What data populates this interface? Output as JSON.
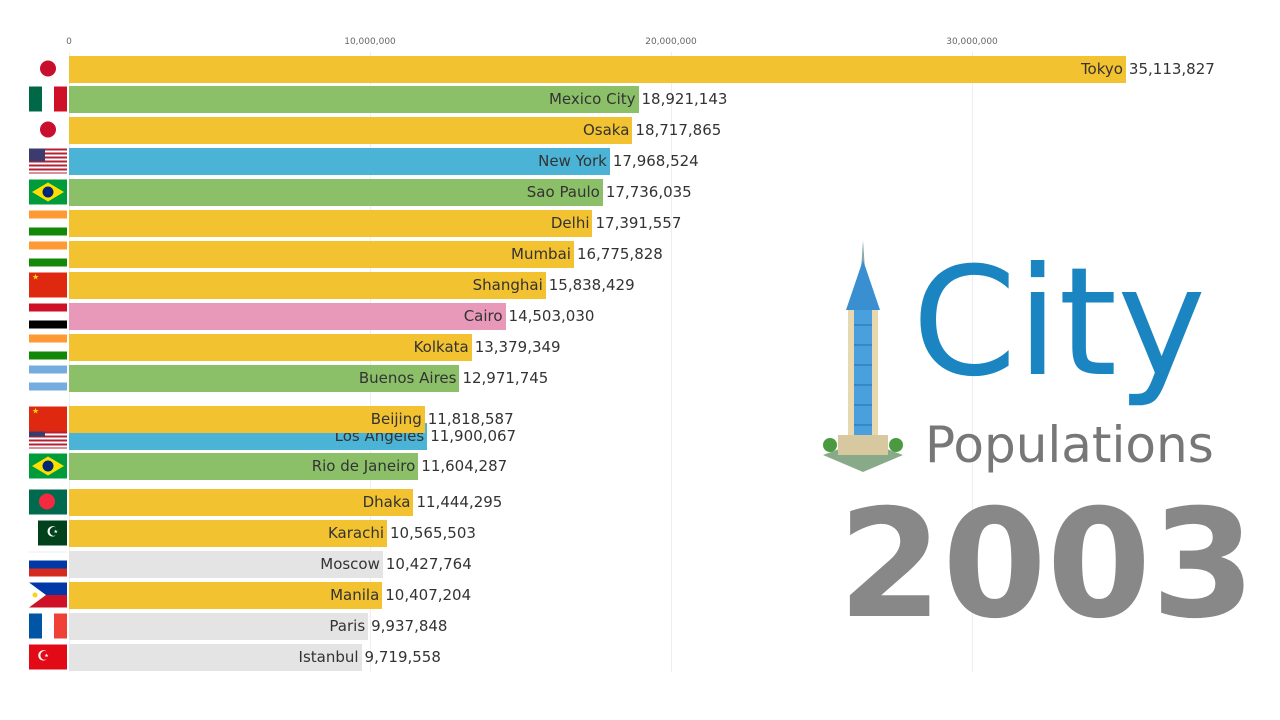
{
  "chart_data": {
    "type": "bar",
    "orientation": "horizontal",
    "xlim": [
      0,
      35113827
    ],
    "x_ticks": [
      "0",
      "10,000,000",
      "20,000,000",
      "30,000,000"
    ],
    "tick_values": [
      0,
      10000000,
      20000000,
      30000000
    ],
    "grid": true,
    "rows": [
      {
        "city": "Tokyo",
        "value": 35113827,
        "value_label": "35,113,827",
        "color": "#f2c230",
        "flag": "japan"
      },
      {
        "city": "Mexico City",
        "value": 18921143,
        "value_label": "18,921,143",
        "color": "#8cc068",
        "flag": "mexico"
      },
      {
        "city": "Osaka",
        "value": 18717865,
        "value_label": "18,717,865",
        "color": "#f2c230",
        "flag": "japan"
      },
      {
        "city": "New York",
        "value": 17968524,
        "value_label": "17,968,524",
        "color": "#4ab3d6",
        "flag": "usa"
      },
      {
        "city": "Sao Paulo",
        "value": 17736035,
        "value_label": "17,736,035",
        "color": "#8cc068",
        "flag": "brazil"
      },
      {
        "city": "Delhi",
        "value": 17391557,
        "value_label": "17,391,557",
        "color": "#f2c230",
        "flag": "india"
      },
      {
        "city": "Mumbai",
        "value": 16775828,
        "value_label": "16,775,828",
        "color": "#f2c230",
        "flag": "india"
      },
      {
        "city": "Shanghai",
        "value": 15838429,
        "value_label": "15,838,429",
        "color": "#f2c230",
        "flag": "china"
      },
      {
        "city": "Cairo",
        "value": 14503030,
        "value_label": "14,503,030",
        "color": "#e898b8",
        "flag": "egypt"
      },
      {
        "city": "Kolkata",
        "value": 13379349,
        "value_label": "13,379,349",
        "color": "#f2c230",
        "flag": "india"
      },
      {
        "city": "Buenos Aires",
        "value": 12971745,
        "value_label": "12,971,745",
        "color": "#8cc068",
        "flag": "argentina"
      },
      {
        "city": "Los Angeles",
        "value": 11900067,
        "value_label": "11,900,067",
        "color": "#4ab3d6",
        "flag": "usa"
      },
      {
        "city": "Beijing",
        "value": 11818587,
        "value_label": "11,818,587",
        "color": "#f2c230",
        "flag": "china"
      },
      {
        "city": "Rio de Janeiro",
        "value": 11604287,
        "value_label": "11,604,287",
        "color": "#8cc068",
        "flag": "brazil"
      },
      {
        "city": "Dhaka",
        "value": 11444295,
        "value_label": "11,444,295",
        "color": "#f2c230",
        "flag": "bangladesh"
      },
      {
        "city": "Karachi",
        "value": 10565503,
        "value_label": "10,565,503",
        "color": "#f2c230",
        "flag": "pakistan"
      },
      {
        "city": "Moscow",
        "value": 10427764,
        "value_label": "10,427,764",
        "color": "#e4e4e4",
        "flag": "russia"
      },
      {
        "city": "Manila",
        "value": 10407204,
        "value_label": "10,407,204",
        "color": "#f2c230",
        "flag": "philippines"
      },
      {
        "city": "Paris",
        "value": 9937848,
        "value_label": "9,937,848",
        "color": "#e4e4e4",
        "flag": "france"
      },
      {
        "city": "Istanbul",
        "value": 9719558,
        "value_label": "9,719,558",
        "color": "#e4e4e4",
        "flag": "turkey"
      }
    ]
  },
  "title": {
    "line1": "City",
    "line2": "Populations"
  },
  "year": "2003"
}
